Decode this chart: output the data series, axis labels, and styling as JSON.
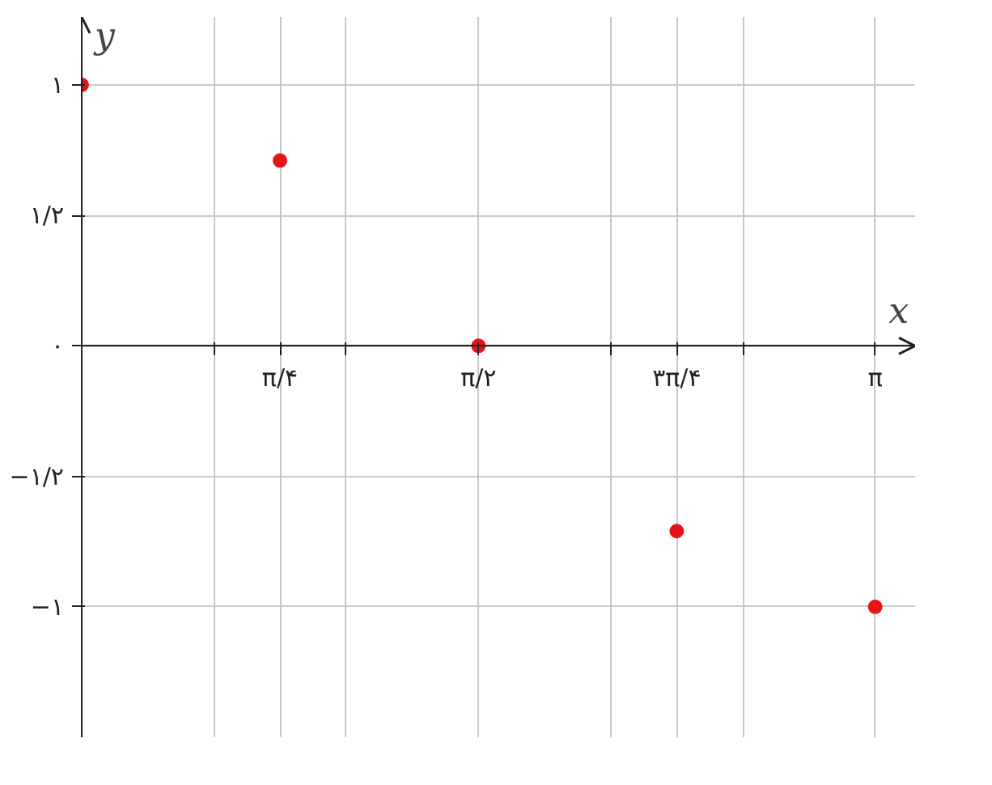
{
  "chart_data": {
    "type": "scatter",
    "xlabel": "x",
    "ylabel": "y",
    "x": [
      0,
      0.785,
      1.571,
      2.356,
      3.142
    ],
    "series": [
      {
        "color": "#e8141c",
        "values": [
          1,
          0.71,
          0,
          -0.71,
          -1
        ]
      }
    ],
    "xlim": [
      0,
      3.3
    ],
    "ylim": [
      -1.5,
      1.26
    ],
    "xticks": [
      {
        "value": 0.524,
        "label": null
      },
      {
        "value": 0.785,
        "label": "π/۴"
      },
      {
        "value": 1.047,
        "label": null
      },
      {
        "value": 1.571,
        "label": "π/۲"
      },
      {
        "value": 2.094,
        "label": null
      },
      {
        "value": 2.356,
        "label": "۳π/۴"
      },
      {
        "value": 2.618,
        "label": null
      },
      {
        "value": 3.142,
        "label": "π"
      }
    ],
    "yticks": [
      {
        "value": -1,
        "label": "−۱"
      },
      {
        "value": -0.5,
        "label": "−۱/۲"
      },
      {
        "value": 0,
        "label": "۰"
      },
      {
        "value": 0.5,
        "label": "۱/۲"
      },
      {
        "value": 1,
        "label": "۱"
      }
    ],
    "grid": true,
    "marker": "circle"
  }
}
